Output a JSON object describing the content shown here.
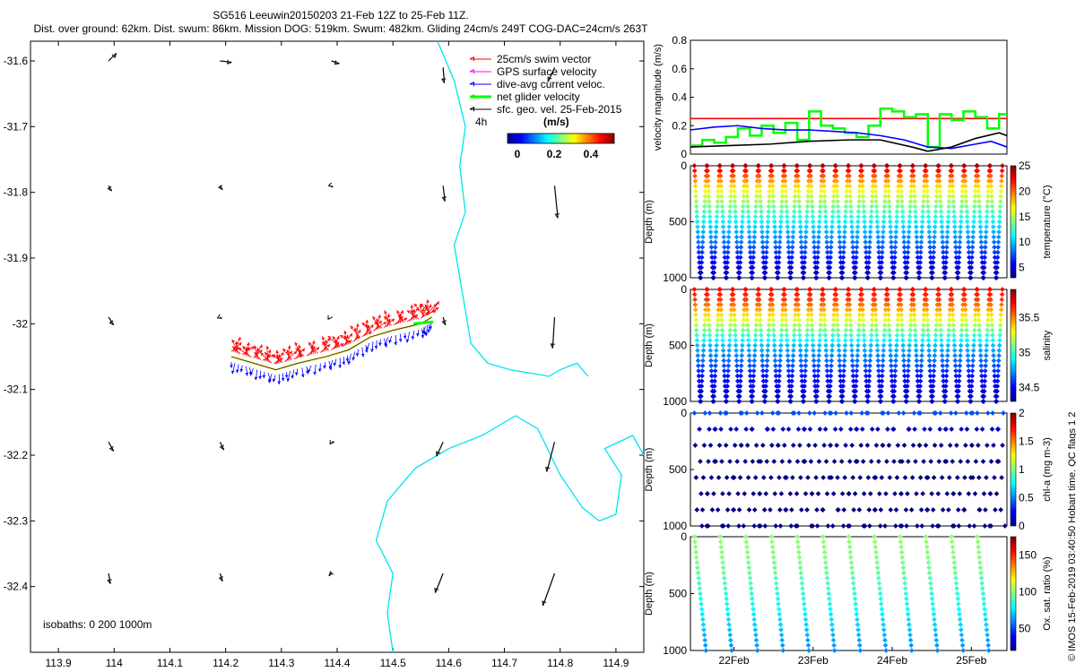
{
  "header": {
    "line1": "SG516 Leeuwin20150203 21-Feb 12Z to 25-Feb 11Z.",
    "line2": "Dist. over ground: 62km. Dist. swum: 86km. Mission DOG: 519km. Swum: 482km. Gliding 24cm/s 249T COG-DAC=24cm/s 263T"
  },
  "side_note": "© IMOS 15-Feb-2019 03:40:50 Hobart time. QC flags 1  2",
  "colors": {
    "swim": "#ff0000",
    "gps": "#ff00ff",
    "dac": "#0000ff",
    "net": "#00ff00",
    "sfc": "#000000",
    "coast": "#00e5ee",
    "ref": "#ff0000",
    "track": "#e8d83a"
  },
  "chart_data": [
    {
      "id": "map",
      "type": "scatter",
      "title": "",
      "xlabel": "",
      "ylabel": "",
      "xlim": [
        113.85,
        114.95
      ],
      "ylim": [
        -32.5,
        -31.57
      ],
      "xticks": [
        113.9,
        114,
        114.1,
        114.2,
        114.3,
        114.4,
        114.5,
        114.6,
        114.7,
        114.8,
        114.9
      ],
      "xtick_labels": [
        "113.9",
        "114",
        "114.1",
        "114.2",
        "114.3",
        "114.4",
        "114.5",
        "114.6",
        "114.7",
        "114.8",
        "114.9"
      ],
      "yticks": [
        -31.6,
        -31.7,
        -31.8,
        -31.9,
        -32,
        -32.1,
        -32.2,
        -32.3,
        -32.4
      ],
      "ytick_labels": [
        "-31.6",
        "-31.7",
        "-31.8",
        "-31.9",
        "-32",
        "-32.1",
        "-32.2",
        "-32.3",
        "-32.4"
      ],
      "legend": {
        "items": [
          {
            "label": "25cm/s swim vector",
            "color_key": "swim"
          },
          {
            "label": "GPS surface velocity",
            "color_key": "gps"
          },
          {
            "label": "dive-avg current veloc.",
            "color_key": "dac"
          },
          {
            "label": "net glider velocity",
            "color_key": "net"
          },
          {
            "label": "sfc. geo. vel. 25-Feb-2015",
            "color_key": "sfc"
          }
        ],
        "scale_label": "4h",
        "units_label": "(m/s)",
        "colorbar_ticks": [
          "0",
          "0.2",
          "0.4"
        ],
        "placement": "top-right"
      },
      "isobaths_label": "isobaths: 0   200   1000m",
      "coastline": [
        [
          [
            114.58,
            -31.57
          ],
          [
            114.61,
            -31.63
          ],
          [
            114.63,
            -31.7
          ],
          [
            114.62,
            -31.76
          ],
          [
            114.63,
            -31.83
          ],
          [
            114.61,
            -31.88
          ],
          [
            114.62,
            -31.93
          ],
          [
            114.63,
            -31.98
          ],
          [
            114.64,
            -32.03
          ],
          [
            114.67,
            -32.06
          ],
          [
            114.71,
            -32.07
          ],
          [
            114.78,
            -32.08
          ],
          [
            114.8,
            -32.07
          ],
          [
            114.83,
            -32.06
          ],
          [
            114.85,
            -32.08
          ]
        ],
        [
          [
            114.5,
            -32.5
          ],
          [
            114.49,
            -32.44
          ],
          [
            114.5,
            -32.38
          ],
          [
            114.47,
            -32.33
          ],
          [
            114.49,
            -32.27
          ],
          [
            114.54,
            -32.22
          ],
          [
            114.6,
            -32.19
          ],
          [
            114.66,
            -32.17
          ],
          [
            114.72,
            -32.14
          ],
          [
            114.76,
            -32.16
          ],
          [
            114.8,
            -32.23
          ],
          [
            114.84,
            -32.28
          ],
          [
            114.87,
            -32.3
          ],
          [
            114.9,
            -32.29
          ],
          [
            114.91,
            -32.23
          ],
          [
            114.88,
            -32.19
          ],
          [
            114.93,
            -32.17
          ],
          [
            114.95,
            -32.2
          ]
        ]
      ],
      "track": [
        [
          114.21,
          -32.05
        ],
        [
          114.25,
          -32.06
        ],
        [
          114.29,
          -32.07
        ],
        [
          114.33,
          -32.06
        ],
        [
          114.38,
          -32.05
        ],
        [
          114.42,
          -32.04
        ],
        [
          114.46,
          -32.02
        ],
        [
          114.5,
          -32.01
        ],
        [
          114.55,
          -32.0
        ],
        [
          114.57,
          -31.99
        ]
      ],
      "geo_vectors": [
        {
          "lon": 113.99,
          "lat": -31.6,
          "u": 0.12,
          "v": 0.12
        },
        {
          "lon": 114.19,
          "lat": -31.6,
          "u": 0.18,
          "v": -0.02
        },
        {
          "lon": 114.39,
          "lat": -31.6,
          "u": 0.12,
          "v": -0.04
        },
        {
          "lon": 114.59,
          "lat": -31.61,
          "u": 0.02,
          "v": -0.24
        },
        {
          "lon": 114.79,
          "lat": -31.61,
          "u": -0.1,
          "v": -0.22
        },
        {
          "lon": 113.99,
          "lat": -31.79,
          "u": 0.05,
          "v": -0.08
        },
        {
          "lon": 114.19,
          "lat": -31.79,
          "u": 0.04,
          "v": -0.06
        },
        {
          "lon": 114.39,
          "lat": -31.79,
          "u": 0.02,
          "v": -0.02
        },
        {
          "lon": 114.59,
          "lat": -31.79,
          "u": 0.03,
          "v": -0.24
        },
        {
          "lon": 114.79,
          "lat": -31.79,
          "u": 0.05,
          "v": -0.5
        },
        {
          "lon": 113.99,
          "lat": -31.99,
          "u": 0.08,
          "v": -0.12
        },
        {
          "lon": 114.19,
          "lat": -31.99,
          "u": 0.03,
          "v": -0.02
        },
        {
          "lon": 114.39,
          "lat": -31.99,
          "u": 0.01,
          "v": 0.0
        },
        {
          "lon": 114.59,
          "lat": -31.99,
          "u": 0.04,
          "v": -0.12
        },
        {
          "lon": 114.79,
          "lat": -31.99,
          "u": -0.03,
          "v": -0.48
        },
        {
          "lon": 113.99,
          "lat": -32.18,
          "u": 0.08,
          "v": -0.14
        },
        {
          "lon": 114.19,
          "lat": -32.18,
          "u": 0.06,
          "v": -0.12
        },
        {
          "lon": 114.39,
          "lat": -32.18,
          "u": 0.04,
          "v": 0.0
        },
        {
          "lon": 114.59,
          "lat": -32.18,
          "u": -0.1,
          "v": -0.22
        },
        {
          "lon": 114.79,
          "lat": -32.18,
          "u": -0.12,
          "v": -0.46
        },
        {
          "lon": 113.99,
          "lat": -32.38,
          "u": 0.03,
          "v": -0.16
        },
        {
          "lon": 114.19,
          "lat": -32.38,
          "u": 0.04,
          "v": -0.12
        },
        {
          "lon": 114.39,
          "lat": -32.38,
          "u": -0.04,
          "v": -0.04
        },
        {
          "lon": 114.59,
          "lat": -32.38,
          "u": -0.12,
          "v": -0.3
        },
        {
          "lon": 114.79,
          "lat": -32.38,
          "u": -0.18,
          "v": -0.5
        }
      ]
    },
    {
      "id": "velocity",
      "type": "line",
      "ylabel": "velocity magnitude (m/s)",
      "xlim": [
        0,
        4
      ],
      "ylim": [
        0,
        0.8
      ],
      "yticks": [
        0,
        0.2,
        0.4,
        0.6,
        0.8
      ],
      "ytick_labels": [
        "0",
        "0.2",
        "0.4",
        "0.6",
        "0.8"
      ],
      "series": [
        {
          "name": "swim reference 25cm/s",
          "color_key": "ref",
          "x": [
            0,
            4
          ],
          "values": [
            0.25,
            0.25
          ]
        },
        {
          "name": "net glider velocity",
          "color_key": "net",
          "step": true,
          "x": [
            0,
            0.15,
            0.3,
            0.45,
            0.6,
            0.75,
            0.9,
            1.05,
            1.2,
            1.35,
            1.5,
            1.65,
            1.8,
            1.95,
            2.1,
            2.25,
            2.4,
            2.55,
            2.7,
            2.85,
            3.0,
            3.15,
            3.3,
            3.45,
            3.6,
            3.75,
            3.9,
            4.0
          ],
          "values": [
            0.06,
            0.1,
            0.08,
            0.12,
            0.18,
            0.13,
            0.2,
            0.15,
            0.22,
            0.1,
            0.3,
            0.2,
            0.18,
            0.15,
            0.12,
            0.2,
            0.32,
            0.3,
            0.26,
            0.28,
            0.05,
            0.28,
            0.24,
            0.3,
            0.26,
            0.18,
            0.28,
            0.28
          ]
        },
        {
          "name": "dive-avg current",
          "color_key": "dac",
          "x": [
            0,
            0.3,
            0.6,
            0.9,
            1.2,
            1.5,
            1.8,
            2.1,
            2.4,
            2.7,
            3.0,
            3.3,
            3.6,
            3.8,
            4.0
          ],
          "values": [
            0.17,
            0.19,
            0.2,
            0.18,
            0.17,
            0.17,
            0.16,
            0.15,
            0.13,
            0.1,
            0.05,
            0.04,
            0.07,
            0.09,
            0.05
          ]
        },
        {
          "name": "surface geostrophic",
          "color_key": "sfc",
          "x": [
            0,
            0.5,
            1.0,
            1.5,
            2.0,
            2.4,
            2.8,
            3.0,
            3.3,
            3.6,
            3.9,
            4.0
          ],
          "values": [
            0.05,
            0.06,
            0.07,
            0.09,
            0.1,
            0.1,
            0.05,
            0.02,
            0.05,
            0.11,
            0.15,
            0.13
          ]
        }
      ]
    },
    {
      "id": "temperature",
      "type": "scatter",
      "ylabel": "Depth (m)",
      "ylim": [
        0,
        1000
      ],
      "yticks": [
        0,
        500,
        1000
      ],
      "ytick_labels": [
        "0",
        "500",
        "1000"
      ],
      "colorbar_label": "temperature (°C)",
      "colorbar_ticks": [
        "5",
        "10",
        "15",
        "20",
        "25"
      ],
      "color_range": [
        3,
        25
      ],
      "profile": {
        "depths": [
          0,
          100,
          200,
          300,
          400,
          500,
          600,
          700,
          800,
          900,
          1000
        ],
        "values": [
          24,
          20,
          17,
          15,
          13,
          11,
          9.5,
          8,
          6.5,
          5,
          4
        ]
      },
      "profile_count": 48
    },
    {
      "id": "salinity",
      "type": "scatter",
      "ylabel": "Depth (m)",
      "ylim": [
        0,
        1000
      ],
      "yticks": [
        0,
        500,
        1000
      ],
      "ytick_labels": [
        "0",
        "500",
        "1000"
      ],
      "colorbar_label": "salinity",
      "colorbar_ticks": [
        "34.5",
        "35",
        "35.5"
      ],
      "color_range": [
        34.3,
        35.9
      ],
      "profile": {
        "depths": [
          0,
          100,
          200,
          300,
          400,
          500,
          600,
          700,
          800,
          900,
          1000
        ],
        "values": [
          35.7,
          35.6,
          35.4,
          35.2,
          35.0,
          34.8,
          34.7,
          34.6,
          34.5,
          34.45,
          34.4
        ]
      },
      "profile_count": 48
    },
    {
      "id": "chlorophyll",
      "type": "scatter",
      "ylabel": "Depth (m)",
      "ylim": [
        0,
        1000
      ],
      "yticks": [
        0,
        500,
        1000
      ],
      "ytick_labels": [
        "0",
        "500",
        "1000"
      ],
      "colorbar_label": "chl-a (mg m-3)",
      "colorbar_ticks": [
        "0",
        "0.5",
        "1",
        "1.5",
        "2"
      ],
      "color_range": [
        0,
        2
      ],
      "profile": {
        "depths": [
          0,
          50,
          100,
          150,
          200,
          400,
          600,
          800,
          1000
        ],
        "values": [
          0.4,
          0.6,
          0.3,
          0.1,
          0.02,
          0.0,
          0.0,
          0.0,
          0.0
        ]
      },
      "profile_count": 48
    },
    {
      "id": "oxygen",
      "type": "scatter",
      "ylabel": "Depth (m)",
      "ylim": [
        0,
        1000
      ],
      "yticks": [
        0,
        500,
        1000
      ],
      "ytick_labels": [
        "0",
        "500",
        "1000"
      ],
      "colorbar_label": "Ox. sat. ratio (%)",
      "colorbar_ticks": [
        "50",
        "100",
        "150"
      ],
      "color_range": [
        20,
        175
      ],
      "profile": {
        "depths": [
          0,
          200,
          400,
          600,
          800,
          1000
        ],
        "values": [
          100,
          98,
          90,
          80,
          70,
          60
        ]
      },
      "profile_count": 24,
      "xlabel_ticks": [
        "22Feb",
        "23Feb",
        "24Feb",
        "25Feb"
      ]
    }
  ]
}
